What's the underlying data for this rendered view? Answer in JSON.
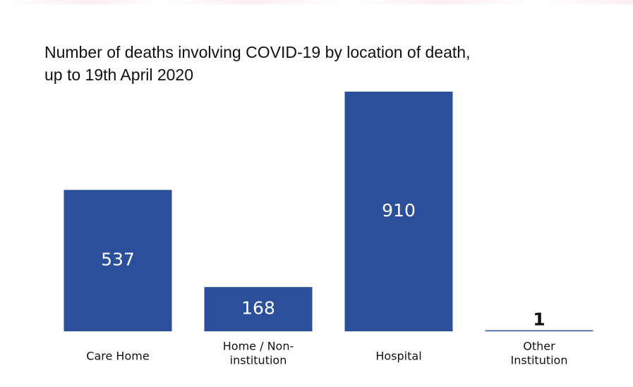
{
  "chart_data": {
    "type": "bar",
    "title": "Number of deaths involving COVID-19 by location of death,\nup to 19th April 2020",
    "categories": [
      [
        "Care Home"
      ],
      [
        "Home / Non-",
        "institution"
      ],
      [
        "Hospital"
      ],
      [
        "Other",
        "Institution"
      ]
    ],
    "values": [
      537,
      168,
      910,
      1
    ],
    "value_labels": [
      "537",
      "168",
      "910",
      "1"
    ],
    "ylim": [
      0,
      910
    ],
    "grid": false,
    "legend": "none",
    "colors": {
      "bar": "#2b4f9a",
      "text": "#111111",
      "value_text": "#ffffff"
    }
  }
}
